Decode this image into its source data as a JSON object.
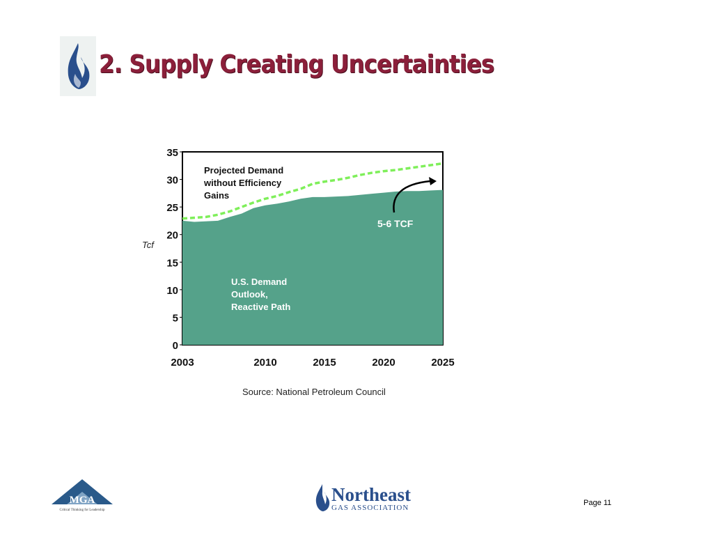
{
  "slide": {
    "title": "2. Supply Creating Uncertainties",
    "source": "Source: National Petroleum Council",
    "page_label": "Page 11"
  },
  "logos": {
    "mga_text": "MGA",
    "mga_tagline": "Critical Thinking for Leadership",
    "nga_name": "Northeast",
    "nga_sub": "GAS ASSOCIATION"
  },
  "colors": {
    "title": "#8b1f3a",
    "area_fill": "#55a28a",
    "projection_line": "#7fef5a",
    "brand_blue": "#2a4f8c"
  },
  "chart_data": {
    "type": "area",
    "ylabel": "Tcf",
    "xlabel": "",
    "ylim": [
      0,
      35
    ],
    "xlim": [
      2003,
      2025
    ],
    "yticks": [
      0,
      5,
      10,
      15,
      20,
      25,
      30,
      35
    ],
    "xticks": [
      2003,
      2010,
      2015,
      2020,
      2025
    ],
    "grid": false,
    "series": [
      {
        "name": "U.S. Demand Outlook, Reactive Path",
        "style": "filled-area",
        "x": [
          2003,
          2004,
          2006,
          2007,
          2008,
          2009,
          2010,
          2011,
          2012,
          2013,
          2014,
          2015,
          2016,
          2017,
          2018,
          2019,
          2020,
          2021,
          2022,
          2023,
          2024,
          2025
        ],
        "values": [
          22.5,
          22.3,
          22.5,
          23.2,
          23.8,
          24.8,
          25.3,
          25.6,
          26.0,
          26.5,
          26.8,
          26.8,
          26.9,
          27.0,
          27.2,
          27.4,
          27.6,
          27.8,
          27.9,
          27.9,
          28.0,
          28.1
        ]
      },
      {
        "name": "Projected Demand without Efficiency Gains",
        "style": "dashed-line",
        "x": [
          2003,
          2005,
          2006,
          2007,
          2008,
          2009,
          2010,
          2011,
          2012,
          2013,
          2014,
          2015,
          2016,
          2017,
          2018,
          2019,
          2020,
          2021,
          2022,
          2023,
          2024,
          2025
        ],
        "values": [
          22.9,
          23.2,
          23.6,
          24.2,
          25.0,
          25.8,
          26.5,
          27.0,
          27.7,
          28.3,
          29.2,
          29.6,
          29.9,
          30.3,
          30.8,
          31.2,
          31.5,
          31.7,
          32.0,
          32.3,
          32.6,
          32.9
        ]
      }
    ],
    "annotations": [
      {
        "text": "5-6 TCF"
      }
    ]
  }
}
